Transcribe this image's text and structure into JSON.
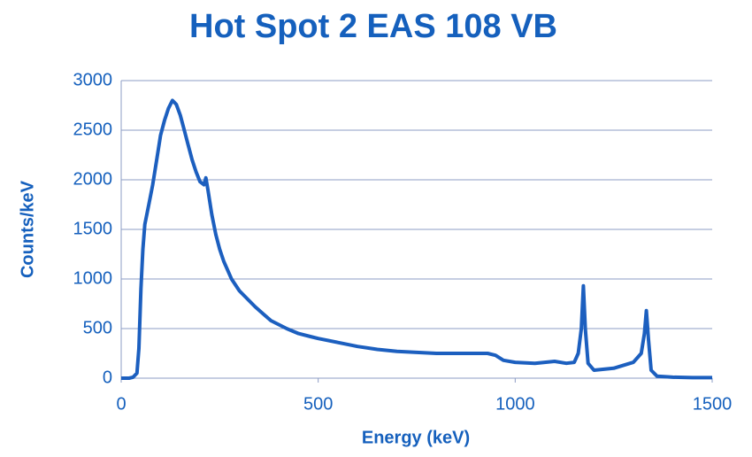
{
  "chart_data": {
    "type": "line",
    "title": "Hot Spot  2 EAS 108 VB",
    "x_label": "Energy (keV)",
    "y_label": "Counts/keV",
    "x": [
      0,
      20,
      30,
      40,
      45,
      50,
      55,
      60,
      70,
      80,
      90,
      100,
      110,
      120,
      130,
      140,
      150,
      160,
      170,
      180,
      190,
      200,
      210,
      215,
      220,
      230,
      240,
      250,
      260,
      280,
      300,
      320,
      340,
      360,
      380,
      400,
      420,
      450,
      480,
      500,
      550,
      600,
      650,
      700,
      750,
      800,
      850,
      900,
      930,
      950,
      970,
      1000,
      1050,
      1100,
      1130,
      1150,
      1160,
      1168,
      1173,
      1178,
      1185,
      1200,
      1250,
      1300,
      1320,
      1328,
      1333,
      1338,
      1345,
      1360,
      1400,
      1450,
      1500
    ],
    "series": [
      {
        "name": "Counts/keV",
        "color": "#1c5fbf",
        "values": [
          0,
          0,
          10,
          50,
          300,
          900,
          1300,
          1550,
          1750,
          1950,
          2200,
          2450,
          2600,
          2720,
          2800,
          2760,
          2650,
          2500,
          2350,
          2200,
          2080,
          1980,
          1950,
          2020,
          1900,
          1650,
          1450,
          1300,
          1180,
          1000,
          880,
          800,
          720,
          650,
          580,
          540,
          500,
          450,
          420,
          400,
          360,
          320,
          290,
          270,
          260,
          250,
          250,
          250,
          250,
          230,
          180,
          160,
          150,
          170,
          150,
          160,
          250,
          500,
          930,
          500,
          150,
          80,
          100,
          160,
          250,
          450,
          680,
          400,
          80,
          20,
          10,
          5,
          5
        ]
      }
    ],
    "xlim": [
      0,
      1500
    ],
    "xticks": [
      0,
      500,
      1000,
      1500
    ],
    "ylim": [
      0,
      3000
    ],
    "yticks": [
      0,
      500,
      1000,
      1500,
      2000,
      2500,
      3000
    ],
    "grid": true
  }
}
